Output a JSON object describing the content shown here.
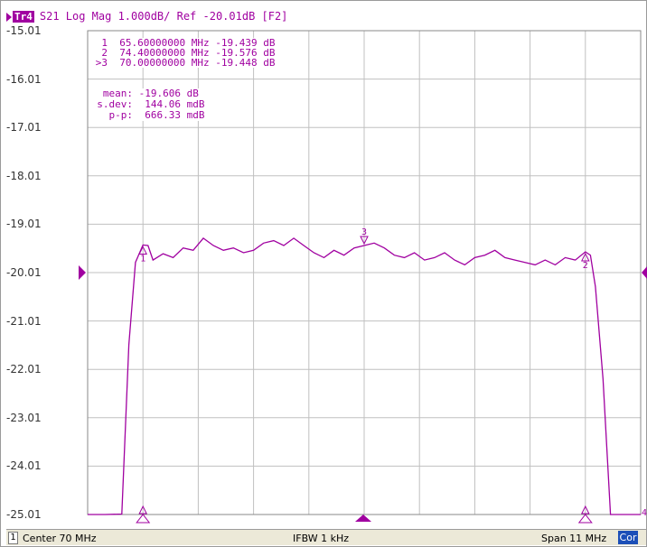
{
  "header": {
    "trace_tag": "Tr4",
    "trace_text": "S21 Log Mag 1.000dB/ Ref -20.01dB [F2]"
  },
  "y_axis": {
    "labels": [
      "-15.01",
      "-16.01",
      "-17.01",
      "-18.01",
      "-19.01",
      "-20.01",
      "-21.01",
      "-22.01",
      "-23.01",
      "-24.01",
      "-25.01"
    ]
  },
  "markers": {
    "rows": [
      {
        "id": "1",
        "freq": "65.60000000 MHz",
        "value": "-19.439 dB"
      },
      {
        "id": "2",
        "freq": "74.40000000 MHz",
        "value": "-19.576 dB"
      },
      {
        "id": ">3",
        "freq": "70.00000000 MHz",
        "value": "-19.448 dB"
      }
    ],
    "labels": [
      "1",
      "2",
      "3"
    ]
  },
  "stats": {
    "mean_label": "mean:",
    "mean_value": "-19.606 dB",
    "sdev_label": "s.dev:",
    "sdev_value": "144.06 mdB",
    "pp_label": "p-p:",
    "pp_value": "666.33 mdB"
  },
  "status_bar": {
    "channel": "1",
    "center": "Center 70 MHz",
    "ifbw": "IFBW 1 kHz",
    "span": "Span 11 MHz",
    "cor": "Cor"
  },
  "edge_labels": {
    "right_marker": "4"
  },
  "colors": {
    "trace": "#a000a0",
    "grid": "#c0c0c0",
    "cor": "#1c4fb8"
  },
  "chart_data": {
    "type": "line",
    "ylim": [
      -25.01,
      -15.01
    ],
    "xlim": [
      64.5,
      75.5
    ],
    "grid": true,
    "series": [
      {
        "x": [
          64.5,
          64.85,
          65.18,
          65.32,
          65.45,
          65.6,
          65.7,
          65.8,
          66.0,
          66.2,
          66.4,
          66.6,
          66.8,
          67.0,
          67.2,
          67.4,
          67.6,
          67.8,
          68.0,
          68.2,
          68.4,
          68.6,
          68.8,
          69.0,
          69.2,
          69.4,
          69.6,
          69.8,
          70.0,
          70.2,
          70.4,
          70.6,
          70.8,
          71.0,
          71.2,
          71.4,
          71.6,
          71.8,
          72.0,
          72.2,
          72.4,
          72.6,
          72.8,
          73.0,
          73.2,
          73.4,
          73.6,
          73.8,
          74.0,
          74.2,
          74.4,
          74.5,
          74.6,
          74.75,
          74.9,
          75.1,
          75.5
        ],
        "y": [
          -25.01,
          -25.01,
          -25.0,
          -21.5,
          -19.8,
          -19.44,
          -19.45,
          -19.75,
          -19.62,
          -19.7,
          -19.5,
          -19.55,
          -19.3,
          -19.45,
          -19.55,
          -19.5,
          -19.6,
          -19.55,
          -19.4,
          -19.35,
          -19.45,
          -19.3,
          -19.45,
          -19.6,
          -19.7,
          -19.55,
          -19.65,
          -19.5,
          -19.45,
          -19.4,
          -19.5,
          -19.65,
          -19.7,
          -19.6,
          -19.75,
          -19.7,
          -19.6,
          -19.75,
          -19.85,
          -19.7,
          -19.65,
          -19.55,
          -19.7,
          -19.75,
          -19.8,
          -19.85,
          -19.75,
          -19.85,
          -19.7,
          -19.75,
          -19.58,
          -19.65,
          -20.3,
          -22.2,
          -25.01,
          -25.01,
          -25.01
        ]
      }
    ],
    "marker_x": [
      65.6,
      74.4,
      70.0
    ]
  }
}
